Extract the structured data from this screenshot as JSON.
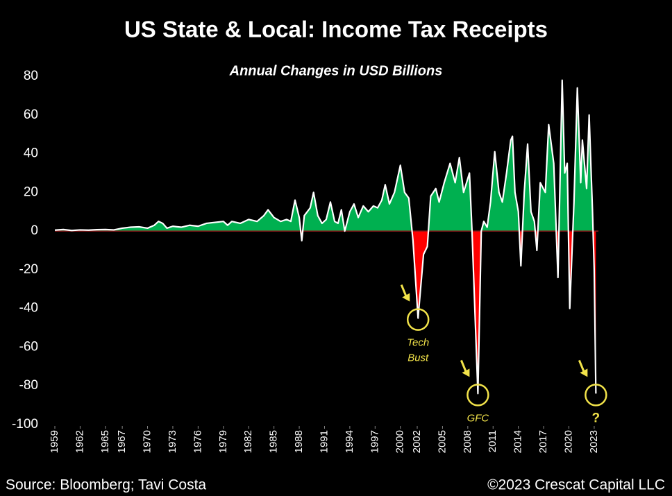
{
  "chart_data": {
    "type": "area",
    "title": "US State & Local: Income Tax Receipts",
    "subtitle": "Annual Changes in USD Billions",
    "source": "Source: Bloomberg; Tavi Costa",
    "copyright": "©2023 Crescat Capital LLC",
    "positive_color": "#00b050",
    "negative_color": "#ff0000",
    "line_color": "#ffffff",
    "xlim": [
      1959,
      2023.5
    ],
    "xticks": [
      1959,
      1962,
      1965,
      1967,
      1970,
      1973,
      1976,
      1979,
      1982,
      1985,
      1988,
      1991,
      1994,
      1997,
      2000,
      2002,
      2005,
      2008,
      2011,
      2014,
      2017,
      2020,
      2023
    ],
    "ylim": [
      -100,
      80
    ],
    "yticks": [
      -100,
      -80,
      -60,
      -40,
      -20,
      0,
      20,
      40,
      60,
      80
    ],
    "x": [
      1959,
      1960,
      1961,
      1962,
      1963,
      1964,
      1965,
      1966,
      1967,
      1968,
      1969,
      1970,
      1970.8,
      1971.3,
      1971.8,
      1972.3,
      1973,
      1974,
      1975,
      1976,
      1977,
      1978,
      1979,
      1979.5,
      1980,
      1981,
      1982,
      1983,
      1983.8,
      1984.3,
      1985,
      1985.8,
      1986.5,
      1987,
      1987.5,
      1988,
      1988.3,
      1988.6,
      1989.3,
      1989.7,
      1990.2,
      1990.7,
      1991.2,
      1991.7,
      1992.2,
      1992.6,
      1993,
      1993.4,
      1994,
      1994.5,
      1995,
      1995.6,
      1996.2,
      1996.8,
      1997.3,
      1997.8,
      1998.2,
      1998.7,
      1999.3,
      2000,
      2000.5,
      2001,
      2001.5,
      2002.1,
      2002.75,
      2003.2,
      2003.6,
      2004.2,
      2004.6,
      2005.2,
      2005.9,
      2006.5,
      2007,
      2007.5,
      2008.2,
      2008.5,
      2009.2,
      2009.6,
      2009.9,
      2010.3,
      2010.7,
      2011.2,
      2011.7,
      2012.1,
      2012.6,
      2013.1,
      2013.3,
      2013.6,
      2014,
      2014.3,
      2014.7,
      2015.1,
      2015.5,
      2015.9,
      2016.2,
      2016.6,
      2017.2,
      2017.6,
      2018.2,
      2018.7,
      2019.2,
      2019.5,
      2019.8,
      2020.1,
      2020.6,
      2021,
      2021.4,
      2021.6,
      2022.1,
      2022.4,
      2022.8,
      2023,
      2023.2
    ],
    "values": [
      0.5,
      0.8,
      0.3,
      0.6,
      0.5,
      0.7,
      0.8,
      0.6,
      1.5,
      2,
      2.2,
      1.5,
      3,
      5,
      4,
      1.5,
      2.5,
      2,
      3,
      2.5,
      4,
      4.5,
      5,
      3,
      5,
      4,
      6,
      5,
      8,
      11,
      7,
      5,
      6,
      5,
      16,
      7,
      -5,
      8,
      12,
      20,
      8,
      4,
      6,
      15,
      5,
      4,
      11,
      0,
      10,
      14,
      7,
      13,
      10,
      13,
      12,
      16,
      24,
      14,
      20,
      34,
      20,
      17,
      -5,
      -45,
      -12,
      -8,
      18,
      22,
      15,
      25,
      35,
      25,
      38,
      20,
      30,
      0,
      -84,
      0,
      5,
      2,
      15,
      41,
      20,
      15,
      30,
      47,
      49,
      20,
      10,
      -18,
      20,
      45,
      10,
      5,
      -10,
      25,
      20,
      55,
      35,
      -24,
      78,
      30,
      35,
      -40,
      15,
      74,
      25,
      47,
      22,
      60,
      10,
      -20,
      -84
    ],
    "annotations": [
      {
        "lines": [
          "Tech",
          "Bust"
        ],
        "x": 2002.1,
        "y": -45
      },
      {
        "lines": [
          "GFC"
        ],
        "x": 2009.2,
        "y": -84
      },
      {
        "lines": [
          "?"
        ],
        "x": 2023.2,
        "y": -84
      }
    ]
  }
}
